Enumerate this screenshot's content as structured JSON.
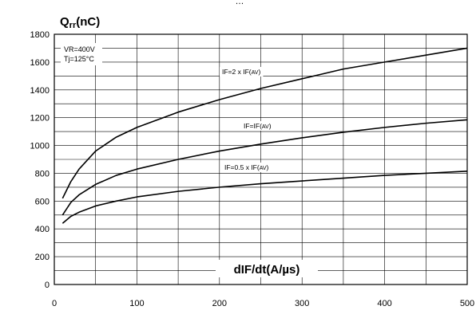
{
  "chart_data": {
    "type": "line",
    "title": "Qrr(nC)",
    "top_text": "…",
    "xlabel": "dIF/dt(A/µs)",
    "ylabel": "Qrr(nC)",
    "xlim": [
      0,
      500
    ],
    "ylim": [
      0,
      1800
    ],
    "x_ticks": [
      "0",
      "100",
      "200",
      "300",
      "400",
      "500"
    ],
    "y_ticks": [
      "0",
      "200",
      "400",
      "600",
      "800",
      "1000",
      "1200",
      "1400",
      "1600",
      "1800"
    ],
    "grid": true,
    "conditions": [
      "VR=400V",
      "Tj=125°C"
    ],
    "x": [
      10,
      20,
      30,
      50,
      75,
      100,
      150,
      200,
      250,
      300,
      350,
      400,
      450,
      500
    ],
    "series": [
      {
        "name": "IF=2 x IF(AV)",
        "values": [
          620,
          740,
          830,
          960,
          1060,
          1130,
          1240,
          1330,
          1410,
          1480,
          1550,
          1600,
          1650,
          1700
        ]
      },
      {
        "name": "IF=IF(AV)",
        "values": [
          500,
          590,
          645,
          720,
          785,
          830,
          900,
          960,
          1010,
          1055,
          1095,
          1130,
          1160,
          1185
        ]
      },
      {
        "name": "IF=0.5 x IF(AV)",
        "values": [
          440,
          490,
          520,
          565,
          600,
          630,
          670,
          700,
          725,
          745,
          765,
          785,
          800,
          815
        ]
      }
    ]
  }
}
